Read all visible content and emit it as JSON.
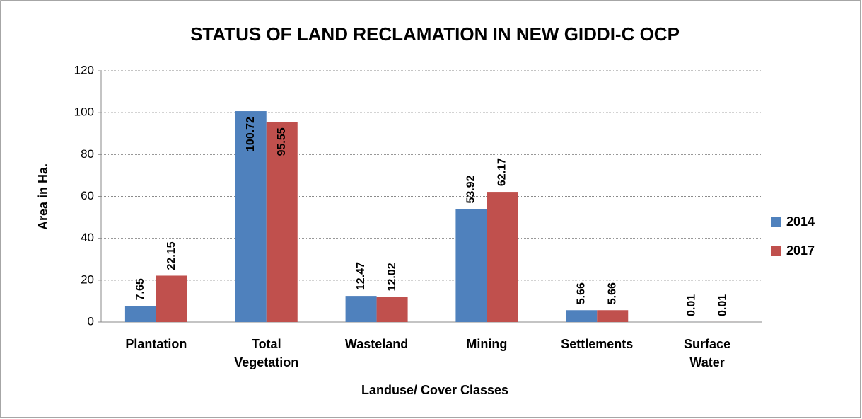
{
  "chart_data": {
    "type": "bar",
    "title": "STATUS OF LAND RECLAMATION IN NEW GIDDI-C OCP",
    "x_label": "Landuse/ Cover Classes",
    "y_label": "Area in Ha.",
    "categories": [
      "Plantation",
      "Total Vegetation",
      "Wasteland",
      "Mining",
      "Settlements",
      "Surface Water"
    ],
    "series": [
      {
        "name": "2014",
        "color": "#4f81bd",
        "values": [
          7.65,
          100.72,
          12.47,
          53.92,
          5.66,
          0.01
        ]
      },
      {
        "name": "2017",
        "color": "#c0504d",
        "values": [
          22.15,
          95.55,
          12.02,
          62.17,
          5.66,
          0.01
        ]
      }
    ],
    "ylim": [
      0,
      120
    ],
    "yticks": [
      0,
      20,
      40,
      60,
      80,
      100,
      120
    ],
    "grid": true,
    "legend": "right"
  }
}
